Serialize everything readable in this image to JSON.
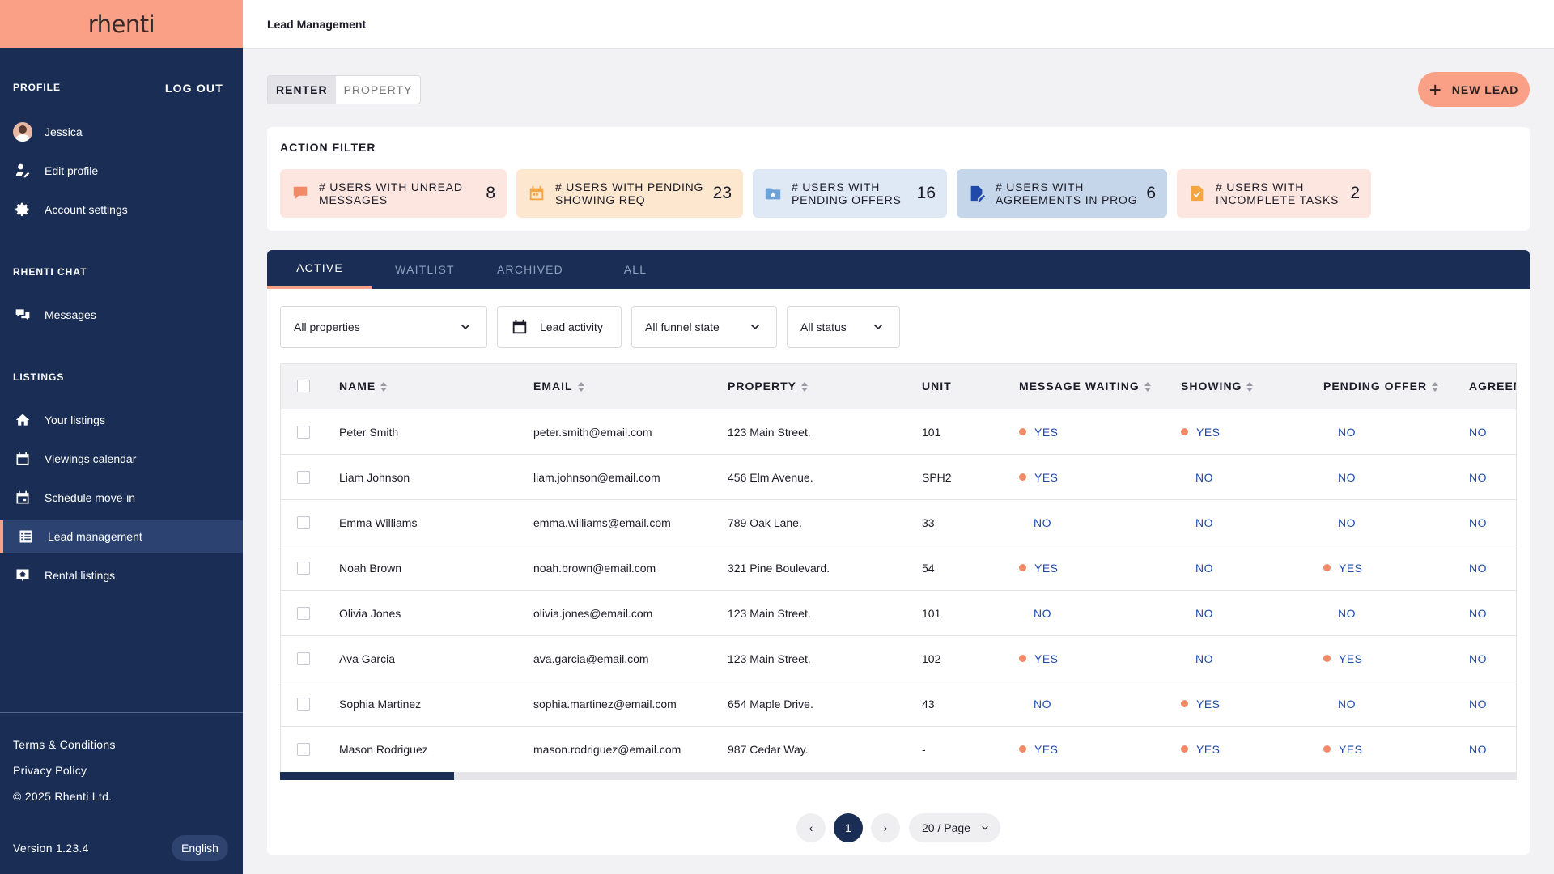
{
  "brand": "rhenti",
  "sidebar": {
    "profile_heading": "PROFILE",
    "logout": "LOG OUT",
    "user_name": "Jessica",
    "edit_profile": "Edit profile",
    "account_settings": "Account settings",
    "chat_heading": "RHENTI CHAT",
    "messages": "Messages",
    "listings_heading": "LISTINGS",
    "your_listings": "Your listings",
    "viewings_calendar": "Viewings calendar",
    "schedule_move_in": "Schedule move-in",
    "lead_management": "Lead management",
    "rental_listings": "Rental listings",
    "terms": "Terms & Conditions",
    "privacy": "Privacy Policy",
    "copyright": "© 2025 Rhenti Ltd.",
    "version": "Version 1.23.4",
    "language": "English"
  },
  "header": {
    "title": "Lead Management"
  },
  "toggle": {
    "renter": "RENTER",
    "property": "PROPERTY",
    "selected": "RENTER"
  },
  "new_lead": "NEW LEAD",
  "action_filter": {
    "title": "ACTION FILTER",
    "tiles": [
      {
        "line1": "# USERS WITH UNREAD",
        "line2": "MESSAGES",
        "count": "8",
        "icon": "flag-icon",
        "bg": "#fde6e0",
        "icon_color": "#f28a68"
      },
      {
        "line1": "# USERS WITH PENDING",
        "line2": "SHOWING REQ",
        "count": "23",
        "icon": "calendar-icon",
        "bg": "#fde8cf",
        "icon_color": "#f3a542"
      },
      {
        "line1": "# USERS WITH",
        "line2": "PENDING OFFERS",
        "count": "16",
        "icon": "folder-star-icon",
        "bg": "#dfe8f5",
        "icon_color": "#6fa3d8"
      },
      {
        "line1": "# USERS WITH",
        "line2": "AGREEMENTS IN PROG",
        "count": "6",
        "icon": "document-edit-icon",
        "bg": "#c5d6ea",
        "icon_color": "#1f4aa8"
      },
      {
        "line1": "# USERS WITH",
        "line2": "INCOMPLETE TASKS",
        "count": "2",
        "icon": "task-check-icon",
        "bg": "#fde6e0",
        "icon_color": "#f3a542"
      }
    ]
  },
  "tabs": [
    "ACTIVE",
    "WAITLIST",
    "ARCHIVED",
    "ALL"
  ],
  "active_tab": "ACTIVE",
  "filters": {
    "properties": "All properties",
    "lead_activity": "Lead activity",
    "funnel": "All funnel state",
    "status": "All status"
  },
  "table": {
    "columns": [
      "NAME",
      "EMAIL",
      "PROPERTY",
      "UNIT",
      "MESSAGE WAITING",
      "SHOWING",
      "PENDING OFFER",
      "AGREEM"
    ],
    "rows": [
      {
        "name": "Peter Smith",
        "email": "peter.smith@email.com",
        "property": "123 Main Street.",
        "unit": "101",
        "message": "YES",
        "showing": "YES",
        "offer": "NO",
        "agreement": "NO"
      },
      {
        "name": "Liam Johnson",
        "email": "liam.johnson@email.com",
        "property": "456 Elm Avenue.",
        "unit": "SPH2",
        "message": "YES",
        "showing": "NO",
        "offer": "NO",
        "agreement": "NO"
      },
      {
        "name": "Emma Williams",
        "email": "emma.williams@email.com",
        "property": "789 Oak Lane.",
        "unit": "33",
        "message": "NO",
        "showing": "NO",
        "offer": "NO",
        "agreement": "NO"
      },
      {
        "name": "Noah Brown",
        "email": "noah.brown@email.com",
        "property": "321 Pine Boulevard.",
        "unit": "54",
        "message": "YES",
        "showing": "NO",
        "offer": "YES",
        "agreement": "NO"
      },
      {
        "name": "Olivia Jones",
        "email": "olivia.jones@email.com",
        "property": "123 Main Street.",
        "unit": "101",
        "message": "NO",
        "showing": "NO",
        "offer": "NO",
        "agreement": "NO"
      },
      {
        "name": "Ava Garcia",
        "email": "ava.garcia@email.com",
        "property": "123 Main Street.",
        "unit": "102",
        "message": "YES",
        "showing": "NO",
        "offer": "YES",
        "agreement": "NO"
      },
      {
        "name": "Sophia Martinez",
        "email": "sophia.martinez@email.com",
        "property": "654 Maple Drive.",
        "unit": "43",
        "message": "NO",
        "showing": "YES",
        "offer": "NO",
        "agreement": "NO"
      },
      {
        "name": "Mason Rodriguez",
        "email": "mason.rodriguez@email.com",
        "property": "987 Cedar Way.",
        "unit": "-",
        "message": "YES",
        "showing": "YES",
        "offer": "YES",
        "agreement": "NO"
      }
    ]
  },
  "pagination": {
    "prev": "‹",
    "current": "1",
    "next": "›",
    "page_size": "20 / Page"
  },
  "colors": {
    "navy": "#1a2e55",
    "accent": "#f9a087",
    "link_blue": "#1f4aa8",
    "yes_dot": "#f28a68"
  }
}
